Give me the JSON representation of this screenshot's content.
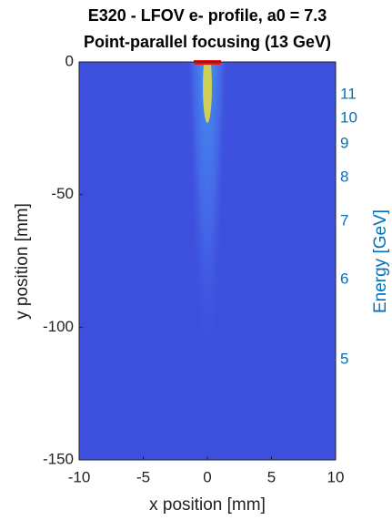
{
  "chart_data": {
    "type": "image",
    "title": [
      "E320 - LFOV e- profile, a0 = 7.3",
      "Point-parallel focusing (13 GeV)"
    ],
    "x_label": "x position [mm]",
    "y_label": "y position [mm]",
    "y2_label": "Energy [GeV]",
    "xlim": [
      -10,
      10
    ],
    "ylim": [
      -150,
      0
    ],
    "xticks": [
      -10,
      -5,
      0,
      5,
      10
    ],
    "yticks": [
      -150,
      -100,
      -50,
      0
    ],
    "y2ticks": [
      {
        "energy": 11,
        "y": -12.4
      },
      {
        "energy": 10,
        "y": -21.3
      },
      {
        "energy": 9,
        "y": -30.9
      },
      {
        "energy": 8,
        "y": -43.6
      },
      {
        "energy": 7,
        "y": -60.1
      },
      {
        "energy": 6,
        "y": -82.1
      },
      {
        "energy": 5,
        "y": -112.3
      }
    ],
    "y2_color": "#0072bd",
    "background_color": "#3d4fdd"
  }
}
